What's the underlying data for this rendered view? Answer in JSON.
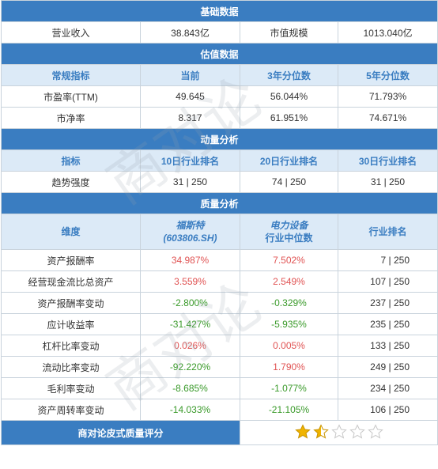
{
  "basic": {
    "title": "基础数据",
    "row": [
      "营业收入",
      "38.843亿",
      "市值规模",
      "1013.040亿"
    ]
  },
  "valuation": {
    "title": "估值数据",
    "headers": [
      "常规指标",
      "当前",
      "3年分位数",
      "5年分位数"
    ],
    "rows": [
      [
        "市盈率(TTM)",
        "49.645",
        "56.044%",
        "71.793%"
      ],
      [
        "市净率",
        "8.317",
        "61.951%",
        "74.671%"
      ]
    ]
  },
  "momentum": {
    "title": "动量分析",
    "headers": [
      "指标",
      "10日行业排名",
      "20日行业排名",
      "30日行业排名"
    ],
    "rows": [
      [
        "趋势强度",
        "31 | 250",
        "74 | 250",
        "31 | 250"
      ]
    ]
  },
  "quality": {
    "title": "质量分析",
    "headers": {
      "dim": "维度",
      "company_name": "福斯特",
      "company_code": "(603806.SH)",
      "industry_line1": "电力设备",
      "industry_line2": "行业中位数",
      "rank": "行业排名"
    },
    "rows": [
      {
        "label": "资产报酬率",
        "company": "34.987%",
        "industry": "7.502%",
        "rank": "7 | 250",
        "c_color": "pos",
        "i_color": "pos"
      },
      {
        "label": "经营现金流比总资产",
        "company": "3.559%",
        "industry": "2.549%",
        "rank": "107 | 250",
        "c_color": "pos",
        "i_color": "pos"
      },
      {
        "label": "资产报酬率变动",
        "company": "-2.800%",
        "industry": "-0.329%",
        "rank": "237 | 250",
        "c_color": "neg",
        "i_color": "neg"
      },
      {
        "label": "应计收益率",
        "company": "-31.427%",
        "industry": "-5.935%",
        "rank": "235 | 250",
        "c_color": "neg",
        "i_color": "neg"
      },
      {
        "label": "杠杆比率变动",
        "company": "0.026%",
        "industry": "0.005%",
        "rank": "133 | 250",
        "c_color": "pos",
        "i_color": "pos"
      },
      {
        "label": "流动比率变动",
        "company": "-92.220%",
        "industry": "1.790%",
        "rank": "249 | 250",
        "c_color": "neg",
        "i_color": "pos"
      },
      {
        "label": "毛利率变动",
        "company": "-8.685%",
        "industry": "-1.077%",
        "rank": "234 | 250",
        "c_color": "neg",
        "i_color": "neg"
      },
      {
        "label": "资产周转率变动",
        "company": "-14.033%",
        "industry": "-21.105%",
        "rank": "106 | 250",
        "c_color": "neg",
        "i_color": "neg"
      }
    ]
  },
  "rating": {
    "label": "商对论皮式质量评分",
    "stars_total": 5,
    "stars_value": 1.5
  },
  "watermark": "商对论",
  "colors": {
    "section_bg": "#3a7dc1",
    "header_bg": "#dceaf7",
    "positive": "#e05353",
    "negative": "#3a9a2a",
    "star_fill": "#f0b400"
  }
}
